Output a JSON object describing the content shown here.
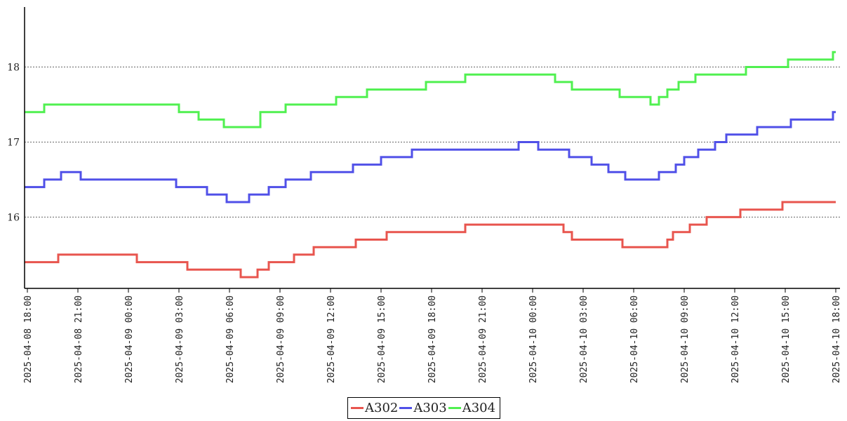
{
  "chart_data": {
    "type": "line",
    "step": true,
    "title": "",
    "xlabel": "",
    "ylabel": "",
    "grid": {
      "y": true,
      "x": false,
      "style": "dotted"
    },
    "legend_position": "bottom-center",
    "xlim": [
      "2025-04-08 17:50",
      "2025-04-10 18:15"
    ],
    "ylim": [
      15.05,
      18.8
    ],
    "y_ticks": [
      16,
      17,
      18
    ],
    "x_ticks": [
      "2025-04-08 18:00",
      "2025-04-08 21:00",
      "2025-04-09 00:00",
      "2025-04-09 03:00",
      "2025-04-09 06:00",
      "2025-04-09 09:00",
      "2025-04-09 12:00",
      "2025-04-09 15:00",
      "2025-04-09 18:00",
      "2025-04-09 21:00",
      "2025-04-10 00:00",
      "2025-04-10 03:00",
      "2025-04-10 06:00",
      "2025-04-10 09:00",
      "2025-04-10 12:00",
      "2025-04-10 15:00",
      "2025-04-10 18:00"
    ],
    "series": [
      {
        "name": "A302",
        "color": "#e8554e",
        "points": [
          [
            "2025-04-08 17:50",
            15.4
          ],
          [
            "2025-04-08 19:50",
            15.5
          ],
          [
            "2025-04-09 00:30",
            15.4
          ],
          [
            "2025-04-09 03:30",
            15.3
          ],
          [
            "2025-04-09 06:40",
            15.2
          ],
          [
            "2025-04-09 07:40",
            15.3
          ],
          [
            "2025-04-09 08:20",
            15.4
          ],
          [
            "2025-04-09 09:50",
            15.5
          ],
          [
            "2025-04-09 11:00",
            15.6
          ],
          [
            "2025-04-09 13:30",
            15.7
          ],
          [
            "2025-04-09 15:20",
            15.8
          ],
          [
            "2025-04-09 20:00",
            15.9
          ],
          [
            "2025-04-10 01:50",
            15.8
          ],
          [
            "2025-04-10 02:20",
            15.7
          ],
          [
            "2025-04-10 05:20",
            15.6
          ],
          [
            "2025-04-10 08:00",
            15.7
          ],
          [
            "2025-04-10 08:20",
            15.8
          ],
          [
            "2025-04-10 09:20",
            15.9
          ],
          [
            "2025-04-10 10:20",
            16.0
          ],
          [
            "2025-04-10 12:20",
            16.1
          ],
          [
            "2025-04-10 14:50",
            16.2
          ],
          [
            "2025-04-10 18:00",
            16.2
          ]
        ]
      },
      {
        "name": "A303",
        "color": "#5050e8",
        "points": [
          [
            "2025-04-08 17:50",
            16.4
          ],
          [
            "2025-04-08 19:00",
            16.5
          ],
          [
            "2025-04-08 20:00",
            16.6
          ],
          [
            "2025-04-08 21:10",
            16.5
          ],
          [
            "2025-04-09 02:50",
            16.4
          ],
          [
            "2025-04-09 04:40",
            16.3
          ],
          [
            "2025-04-09 05:50",
            16.2
          ],
          [
            "2025-04-09 07:10",
            16.3
          ],
          [
            "2025-04-09 08:20",
            16.4
          ],
          [
            "2025-04-09 09:20",
            16.5
          ],
          [
            "2025-04-09 10:50",
            16.6
          ],
          [
            "2025-04-09 13:20",
            16.7
          ],
          [
            "2025-04-09 15:00",
            16.8
          ],
          [
            "2025-04-09 16:50",
            16.9
          ],
          [
            "2025-04-09 23:10",
            17.0
          ],
          [
            "2025-04-10 00:20",
            16.9
          ],
          [
            "2025-04-10 02:10",
            16.8
          ],
          [
            "2025-04-10 03:30",
            16.7
          ],
          [
            "2025-04-10 04:30",
            16.6
          ],
          [
            "2025-04-10 05:30",
            16.5
          ],
          [
            "2025-04-10 07:30",
            16.6
          ],
          [
            "2025-04-10 08:30",
            16.7
          ],
          [
            "2025-04-10 09:00",
            16.8
          ],
          [
            "2025-04-10 09:50",
            16.9
          ],
          [
            "2025-04-10 10:50",
            17.0
          ],
          [
            "2025-04-10 11:30",
            17.1
          ],
          [
            "2025-04-10 13:20",
            17.2
          ],
          [
            "2025-04-10 15:20",
            17.3
          ],
          [
            "2025-04-10 17:50",
            17.4
          ],
          [
            "2025-04-10 18:00",
            17.4
          ]
        ]
      },
      {
        "name": "A304",
        "color": "#50f050",
        "points": [
          [
            "2025-04-08 17:50",
            17.4
          ],
          [
            "2025-04-08 19:00",
            17.5
          ],
          [
            "2025-04-09 03:00",
            17.4
          ],
          [
            "2025-04-09 04:10",
            17.3
          ],
          [
            "2025-04-09 05:40",
            17.2
          ],
          [
            "2025-04-09 07:50",
            17.4
          ],
          [
            "2025-04-09 09:20",
            17.5
          ],
          [
            "2025-04-09 12:20",
            17.6
          ],
          [
            "2025-04-09 14:10",
            17.7
          ],
          [
            "2025-04-09 17:40",
            17.8
          ],
          [
            "2025-04-09 20:00",
            17.9
          ],
          [
            "2025-04-10 01:20",
            17.8
          ],
          [
            "2025-04-10 02:20",
            17.7
          ],
          [
            "2025-04-10 05:10",
            17.6
          ],
          [
            "2025-04-10 07:00",
            17.5
          ],
          [
            "2025-04-10 07:30",
            17.6
          ],
          [
            "2025-04-10 08:00",
            17.7
          ],
          [
            "2025-04-10 08:40",
            17.8
          ],
          [
            "2025-04-10 09:40",
            17.9
          ],
          [
            "2025-04-10 12:40",
            18.0
          ],
          [
            "2025-04-10 15:10",
            18.1
          ],
          [
            "2025-04-10 17:50",
            18.2
          ],
          [
            "2025-04-10 18:00",
            18.2
          ]
        ]
      }
    ]
  }
}
